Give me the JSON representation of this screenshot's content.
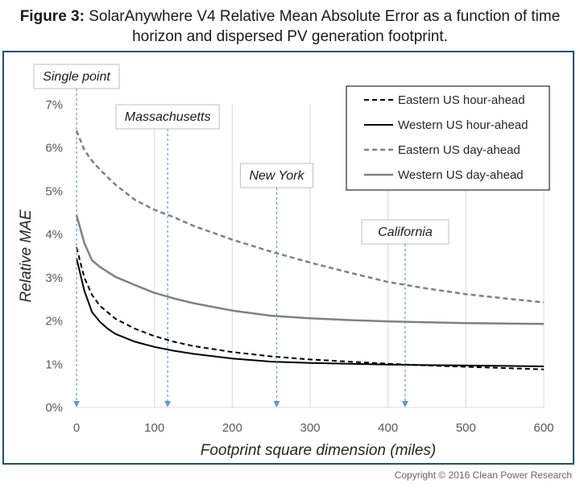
{
  "figure": {
    "label": "Figure 3:",
    "title_line1": "SolarAnywhere V4 Relative Mean Absolute Error as a function of time",
    "title_line2": "horizon and dispersed PV generation footprint.",
    "copyright": "Copyright © 2016 Clean Power Research"
  },
  "chart_data": {
    "type": "line",
    "xlabel": "Footprint square dimension (miles)",
    "ylabel": "Relative MAE",
    "xlim": [
      0,
      600
    ],
    "ylim": [
      0,
      0.07
    ],
    "x_ticks": [
      "0",
      "100",
      "200",
      "300",
      "400",
      "500",
      "600"
    ],
    "y_ticks": [
      "0%",
      "1%",
      "2%",
      "3%",
      "4%",
      "5%",
      "6%",
      "7%"
    ],
    "grid": {
      "vertical": true,
      "horizontal": false
    },
    "legend_position": "top-right",
    "series": [
      {
        "name": "Eastern US hour-ahead",
        "style": "dashed",
        "color": "#000000",
        "x": [
          0,
          10,
          20,
          30,
          40,
          50,
          75,
          100,
          125,
          150,
          200,
          250,
          300,
          350,
          400,
          450,
          500,
          550,
          600
        ],
        "y": [
          0.037,
          0.03,
          0.026,
          0.0235,
          0.022,
          0.0205,
          0.0182,
          0.0165,
          0.0152,
          0.0142,
          0.0128,
          0.0118,
          0.0111,
          0.0106,
          0.0101,
          0.0097,
          0.0094,
          0.0091,
          0.0088
        ]
      },
      {
        "name": "Western US hour-ahead",
        "style": "solid",
        "color": "#000000",
        "x": [
          0,
          10,
          20,
          30,
          40,
          50,
          75,
          100,
          125,
          150,
          200,
          250,
          300,
          350,
          400,
          450,
          500,
          550,
          600
        ],
        "y": [
          0.0345,
          0.027,
          0.022,
          0.0198,
          0.0182,
          0.017,
          0.0152,
          0.014,
          0.0131,
          0.0124,
          0.0113,
          0.0106,
          0.0103,
          0.0101,
          0.0099,
          0.0098,
          0.0097,
          0.0096,
          0.0095
        ]
      },
      {
        "name": "Eastern US day-ahead",
        "style": "dashed",
        "color": "#808080",
        "x": [
          0,
          10,
          20,
          30,
          50,
          75,
          100,
          125,
          150,
          200,
          250,
          300,
          350,
          400,
          450,
          500,
          550,
          600
        ],
        "y": [
          0.064,
          0.0595,
          0.057,
          0.055,
          0.0515,
          0.048,
          0.0457,
          0.044,
          0.042,
          0.0388,
          0.036,
          0.0335,
          0.0312,
          0.029,
          0.0275,
          0.0262,
          0.0252,
          0.0243
        ]
      },
      {
        "name": "Western US day-ahead",
        "style": "solid",
        "color": "#808080",
        "x": [
          0,
          10,
          20,
          30,
          50,
          75,
          100,
          125,
          150,
          200,
          250,
          300,
          350,
          400,
          450,
          500,
          550,
          600
        ],
        "y": [
          0.0445,
          0.038,
          0.034,
          0.0325,
          0.0302,
          0.0283,
          0.0265,
          0.0252,
          0.0241,
          0.0224,
          0.0212,
          0.0206,
          0.0202,
          0.0199,
          0.0197,
          0.0195,
          0.0194,
          0.0193
        ]
      }
    ],
    "annotations": [
      {
        "text": "Single point",
        "x": 0
      },
      {
        "text": "Massachusetts",
        "x": 117
      },
      {
        "text": "New York",
        "x": 257
      },
      {
        "text": "California",
        "x": 422
      }
    ]
  }
}
